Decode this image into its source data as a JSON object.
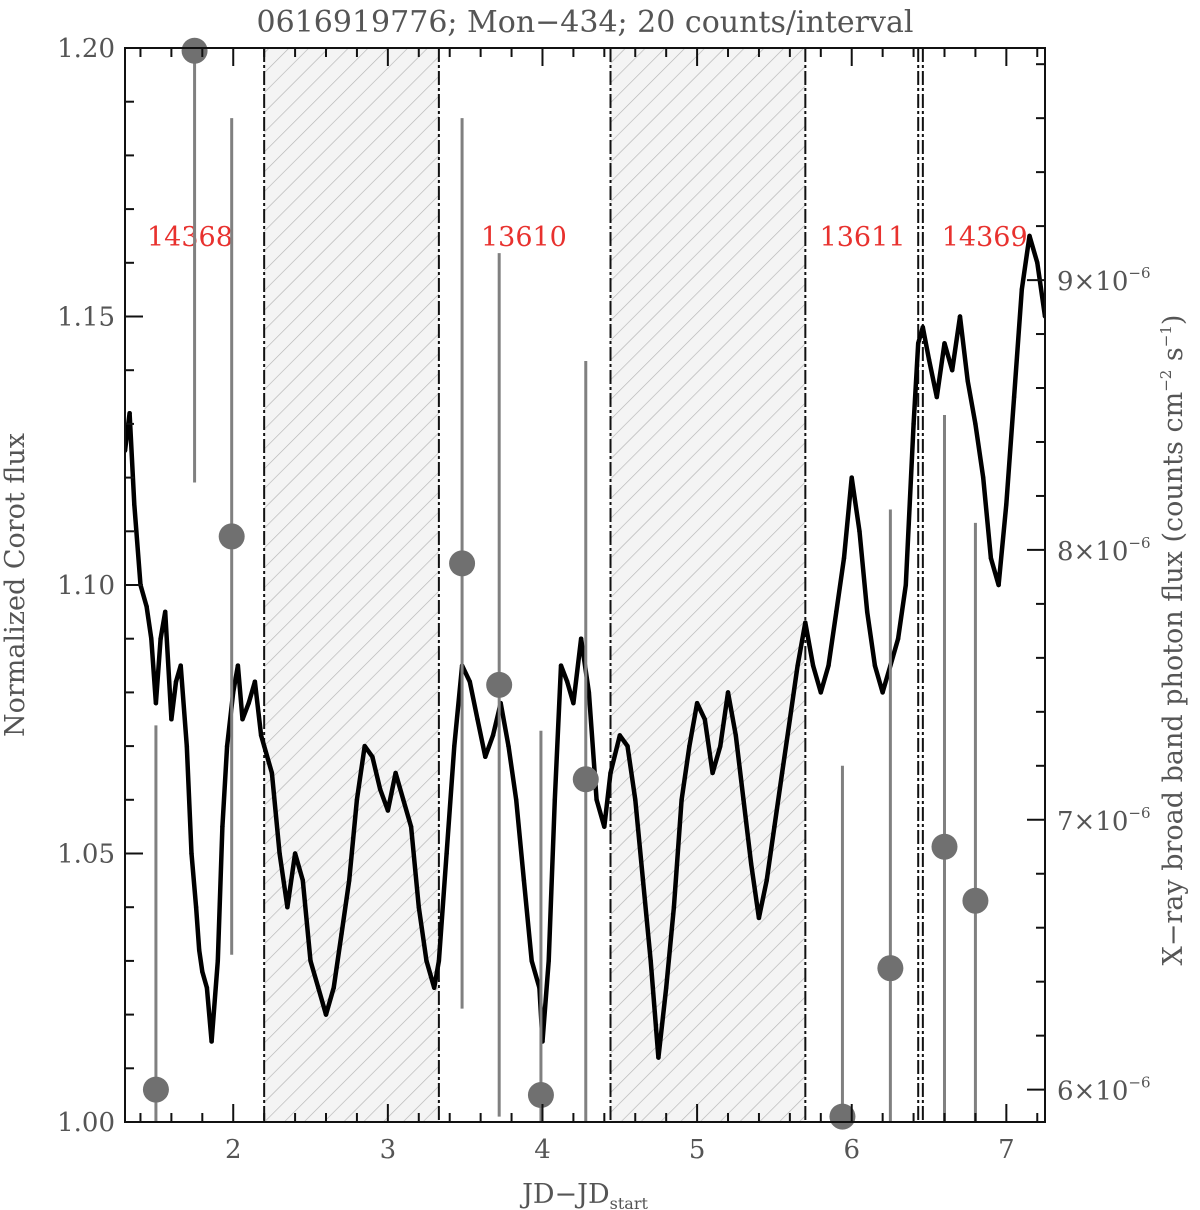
{
  "chart_data": {
    "type": "line",
    "title": "0616919776; Mon−434; 20 counts/interval",
    "xlabel_main": "JD−JD",
    "xlabel_sub": "start",
    "ylabel_left": "Normalized Corot flux",
    "ylabel_right": "X−ray broad band photon flux (counts cm",
    "ylabel_right_exp1": "−2",
    "ylabel_right_mid": " s",
    "ylabel_right_exp2": "−1",
    "ylabel_right_end": ")",
    "xlim": [
      1.3,
      7.25
    ],
    "ylim_left": [
      1.0,
      1.2
    ],
    "ylim_right": [
      5.88e-06,
      9.86e-06
    ],
    "x_ticks": [
      2,
      3,
      4,
      5,
      6,
      7
    ],
    "x_tick_labels": [
      "2",
      "3",
      "4",
      "5",
      "6",
      "7"
    ],
    "y_ticks_left": [
      1.0,
      1.05,
      1.1,
      1.15,
      1.2
    ],
    "y_tick_labels_left": [
      "1.00",
      "1.05",
      "1.10",
      "1.15",
      "1.20"
    ],
    "y_ticks_right": [
      6e-06,
      7e-06,
      8e-06,
      9e-06
    ],
    "y_tick_labels_right": [
      {
        "base": "6×10",
        "exp": "−6"
      },
      {
        "base": "7×10",
        "exp": "−6"
      },
      {
        "base": "8×10",
        "exp": "−6"
      },
      {
        "base": "9×10",
        "exp": "−6"
      }
    ],
    "observations": [
      {
        "label": "14368",
        "x": 1.72
      },
      {
        "label": "13610",
        "x": 3.88
      },
      {
        "label": "13611",
        "x": 6.07
      },
      {
        "label": "14369",
        "x": 6.86
      }
    ],
    "observation_label_y": 1.165,
    "observation_label_color": "#e8312e",
    "gaps": [
      [
        2.2,
        3.33
      ],
      [
        4.44,
        5.7
      ]
    ],
    "obs_boundaries": [
      2.2,
      3.33,
      4.44,
      5.7,
      6.43,
      6.46
    ],
    "corot_flux": {
      "x": [
        1.3,
        1.33,
        1.36,
        1.4,
        1.44,
        1.47,
        1.5,
        1.53,
        1.56,
        1.6,
        1.63,
        1.66,
        1.7,
        1.73,
        1.76,
        1.78,
        1.8,
        1.83,
        1.86,
        1.9,
        1.93,
        1.96,
        2.0,
        2.03,
        2.06,
        2.1,
        2.14,
        2.18,
        2.2,
        2.25,
        2.3,
        2.35,
        2.4,
        2.45,
        2.5,
        2.55,
        2.6,
        2.65,
        2.7,
        2.75,
        2.8,
        2.85,
        2.9,
        2.95,
        3.0,
        3.05,
        3.1,
        3.15,
        3.2,
        3.25,
        3.3,
        3.33,
        3.38,
        3.43,
        3.48,
        3.53,
        3.58,
        3.63,
        3.68,
        3.73,
        3.78,
        3.83,
        3.88,
        3.93,
        3.98,
        4.0,
        4.04,
        4.08,
        4.12,
        4.16,
        4.2,
        4.25,
        4.3,
        4.35,
        4.4,
        4.44,
        4.5,
        4.55,
        4.6,
        4.65,
        4.7,
        4.75,
        4.8,
        4.85,
        4.9,
        4.95,
        5.0,
        5.05,
        5.1,
        5.15,
        5.2,
        5.25,
        5.3,
        5.35,
        5.4,
        5.45,
        5.5,
        5.55,
        5.6,
        5.65,
        5.7,
        5.75,
        5.8,
        5.85,
        5.9,
        5.95,
        6.0,
        6.05,
        6.1,
        6.15,
        6.2,
        6.25,
        6.3,
        6.35,
        6.4,
        6.43,
        6.46,
        6.5,
        6.55,
        6.6,
        6.65,
        6.7,
        6.75,
        6.8,
        6.85,
        6.9,
        6.95,
        7.0,
        7.05,
        7.1,
        7.15,
        7.2,
        7.25
      ],
      "y": [
        1.125,
        1.132,
        1.115,
        1.1,
        1.096,
        1.09,
        1.078,
        1.09,
        1.095,
        1.075,
        1.082,
        1.085,
        1.07,
        1.05,
        1.04,
        1.032,
        1.028,
        1.025,
        1.015,
        1.03,
        1.055,
        1.07,
        1.08,
        1.085,
        1.075,
        1.078,
        1.082,
        1.072,
        1.07,
        1.065,
        1.05,
        1.04,
        1.05,
        1.045,
        1.03,
        1.025,
        1.02,
        1.025,
        1.035,
        1.045,
        1.06,
        1.07,
        1.068,
        1.062,
        1.058,
        1.065,
        1.06,
        1.055,
        1.04,
        1.03,
        1.025,
        1.03,
        1.05,
        1.07,
        1.085,
        1.082,
        1.075,
        1.068,
        1.072,
        1.078,
        1.07,
        1.06,
        1.045,
        1.03,
        1.025,
        1.015,
        1.03,
        1.06,
        1.085,
        1.082,
        1.078,
        1.09,
        1.08,
        1.06,
        1.055,
        1.065,
        1.072,
        1.07,
        1.06,
        1.045,
        1.03,
        1.012,
        1.025,
        1.04,
        1.06,
        1.07,
        1.078,
        1.075,
        1.065,
        1.07,
        1.08,
        1.072,
        1.06,
        1.048,
        1.038,
        1.045,
        1.055,
        1.065,
        1.075,
        1.085,
        1.093,
        1.085,
        1.08,
        1.085,
        1.095,
        1.105,
        1.12,
        1.11,
        1.095,
        1.085,
        1.08,
        1.085,
        1.09,
        1.1,
        1.13,
        1.145,
        1.148,
        1.142,
        1.135,
        1.145,
        1.14,
        1.15,
        1.138,
        1.13,
        1.12,
        1.105,
        1.1,
        1.115,
        1.135,
        1.155,
        1.165,
        1.16,
        1.15
      ]
    },
    "xray_flux": {
      "x": [
        1.5,
        1.75,
        1.99,
        3.48,
        3.72,
        3.99,
        4.28,
        5.94,
        6.25,
        6.6,
        6.8
      ],
      "y": [
        6e-06,
        9.85e-06,
        8.05e-06,
        7.95e-06,
        7.5e-06,
        5.98e-06,
        7.15e-06,
        5.9e-06,
        6.45e-06,
        6.9e-06,
        6.7e-06
      ],
      "err": [
        1.35e-06,
        1.6e-06,
        1.55e-06,
        1.65e-06,
        1.6e-06,
        1.35e-06,
        1.55e-06,
        1.3e-06,
        1.7e-06,
        1.6e-06,
        1.4e-06
      ]
    }
  }
}
